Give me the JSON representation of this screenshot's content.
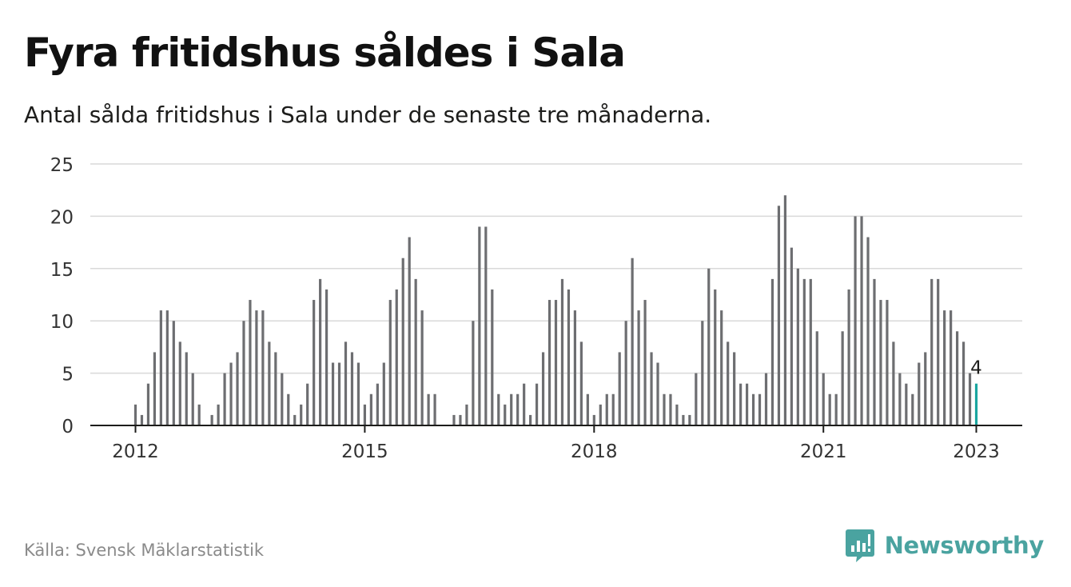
{
  "title": "Fyra fritidshus såldes i Sala",
  "subtitle": "Antal sålda fritidshus i Sala under de senaste tre månaderna.",
  "source": "Källa: Svensk Mäklarstatistik",
  "brand": {
    "name": "Newsworthy",
    "color": "#4aa3a0",
    "icon": "newsworthy-chart-bubble-icon"
  },
  "colors": {
    "bar": "#6d6e71",
    "highlight": "#1aa6a0",
    "grid": "#d9d9d9",
    "axis": "#1d1d1b"
  },
  "chart_data": {
    "type": "bar",
    "x_start": "2012-01",
    "x_end": "2023-01",
    "frequency": "monthly",
    "xticks": [
      "2012",
      "2015",
      "2018",
      "2021",
      "2023"
    ],
    "yticks": [
      0,
      5,
      10,
      15,
      20,
      25
    ],
    "ylim": [
      0,
      25
    ],
    "grid": true,
    "highlight_label": "4",
    "values": [
      2,
      1,
      4,
      7,
      11,
      11,
      10,
      8,
      7,
      5,
      2,
      0,
      1,
      2,
      5,
      6,
      7,
      10,
      12,
      11,
      11,
      8,
      7,
      5,
      3,
      1,
      2,
      4,
      12,
      14,
      13,
      6,
      6,
      8,
      7,
      6,
      2,
      3,
      4,
      6,
      12,
      13,
      16,
      18,
      14,
      11,
      3,
      3,
      0,
      0,
      1,
      1,
      2,
      10,
      19,
      19,
      13,
      3,
      2,
      3,
      3,
      4,
      1,
      4,
      7,
      12,
      12,
      14,
      13,
      11,
      8,
      3,
      1,
      2,
      3,
      3,
      7,
      10,
      16,
      11,
      12,
      7,
      6,
      3,
      3,
      2,
      1,
      1,
      5,
      10,
      15,
      13,
      11,
      8,
      7,
      4,
      4,
      3,
      3,
      5,
      14,
      21,
      22,
      17,
      15,
      14,
      14,
      9,
      5,
      3,
      3,
      9,
      13,
      20,
      20,
      18,
      14,
      12,
      12,
      8,
      5,
      4,
      3,
      6,
      7,
      14,
      14,
      11,
      11,
      9,
      8,
      5,
      4
    ]
  }
}
